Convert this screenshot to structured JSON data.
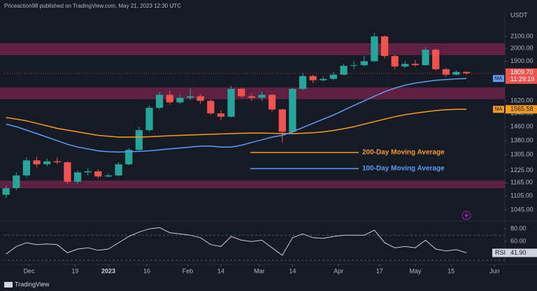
{
  "chart_data": {
    "type": "candlestick",
    "header": "Priceaction98 published on TradingView.com, May 21, 2023 12:30 UTC",
    "quote": "USDT",
    "brand": "TradingView",
    "log_scale": true,
    "up_color": "#26a69a",
    "down_color": "#ef5350",
    "x": [
      -9,
      -5,
      -1,
      3,
      7,
      11,
      15,
      19,
      23,
      27,
      31,
      35,
      39,
      43,
      47,
      51,
      55,
      59,
      63,
      67,
      71,
      75,
      79,
      83,
      87,
      91,
      95,
      99,
      103,
      107,
      111,
      115,
      119,
      123,
      127,
      131,
      135,
      139,
      143,
      147,
      151,
      155,
      159,
      163,
      167,
      171
    ],
    "open": [
      1110,
      1140,
      1200,
      1275,
      1255,
      1270,
      1265,
      1170,
      1215,
      1220,
      1195,
      1200,
      1255,
      1330,
      1440,
      1575,
      1660,
      1610,
      1640,
      1650,
      1620,
      1540,
      1520,
      1700,
      1650,
      1640,
      1660,
      1565,
      1430,
      1700,
      1790,
      1760,
      1770,
      1800,
      1865,
      1870,
      1900,
      2100,
      1940,
      1860,
      1880,
      1870,
      1990,
      1840,
      1800,
      1820
    ],
    "high": [
      1150,
      1215,
      1290,
      1295,
      1285,
      1290,
      1270,
      1225,
      1235,
      1230,
      1210,
      1265,
      1340,
      1460,
      1590,
      1680,
      1690,
      1660,
      1700,
      1665,
      1630,
      1560,
      1720,
      1710,
      1670,
      1680,
      1665,
      1570,
      1710,
      1810,
      1800,
      1790,
      1820,
      1880,
      1900,
      1940,
      2130,
      2110,
      1950,
      1900,
      1910,
      2010,
      2000,
      1850,
      1830,
      1825
    ],
    "low": [
      1095,
      1130,
      1190,
      1240,
      1245,
      1255,
      1160,
      1160,
      1200,
      1185,
      1190,
      1195,
      1250,
      1325,
      1430,
      1565,
      1595,
      1600,
      1625,
      1600,
      1530,
      1500,
      1515,
      1640,
      1620,
      1620,
      1550,
      1370,
      1420,
      1690,
      1740,
      1750,
      1760,
      1795,
      1840,
      1860,
      1895,
      1920,
      1840,
      1850,
      1860,
      1865,
      1830,
      1785,
      1795,
      1800
    ],
    "close": [
      1140,
      1200,
      1275,
      1255,
      1270,
      1265,
      1170,
      1215,
      1220,
      1195,
      1200,
      1255,
      1330,
      1440,
      1575,
      1660,
      1610,
      1640,
      1650,
      1620,
      1540,
      1520,
      1700,
      1650,
      1640,
      1660,
      1565,
      1430,
      1700,
      1790,
      1760,
      1770,
      1800,
      1865,
      1870,
      1900,
      2100,
      1940,
      1860,
      1880,
      1870,
      1990,
      1840,
      1800,
      1820,
      1810
    ],
    "xlim": [
      -10,
      186
    ],
    "xticks": [
      {
        "value": 0,
        "label": "Dec"
      },
      {
        "value": 18,
        "label": "19"
      },
      {
        "value": 31,
        "label": "2023"
      },
      {
        "value": 46,
        "label": "16"
      },
      {
        "value": 62,
        "label": "Feb"
      },
      {
        "value": 75,
        "label": "14"
      },
      {
        "value": 90,
        "label": "Mar"
      },
      {
        "value": 103,
        "label": "14"
      },
      {
        "value": 121,
        "label": "Apr"
      },
      {
        "value": 137,
        "label": "17"
      },
      {
        "value": 151,
        "label": "May"
      },
      {
        "value": 165,
        "label": "15"
      },
      {
        "value": 182,
        "label": "Jun"
      }
    ],
    "ylim": [
      1010,
      2234
    ],
    "yticks": [
      {
        "value": 1045,
        "label": "1045.00"
      },
      {
        "value": 1105,
        "label": "1105.00"
      },
      {
        "value": 1165,
        "label": "1165.00"
      },
      {
        "value": 1225,
        "label": "1225.00"
      },
      {
        "value": 1305,
        "label": "1305.00"
      },
      {
        "value": 1380,
        "label": "1380.00"
      },
      {
        "value": 1460,
        "label": "1460.00"
      },
      {
        "value": 1540,
        "label": "1540.00"
      },
      {
        "value": 1620,
        "label": "1620.00"
      },
      {
        "value": 1900,
        "label": "1900.00"
      },
      {
        "value": 2000,
        "label": "2000.00"
      },
      {
        "value": 2100,
        "label": "2100.00"
      }
    ],
    "zones": {
      "color": "#6b2346",
      "ranges": [
        [
          1947,
          2042
        ],
        [
          1630,
          1710
        ],
        [
          1140,
          1175
        ]
      ]
    },
    "series": [
      {
        "name": "200-Day Moving Average",
        "color": "#f39c1f",
        "tag": "MA",
        "last_label": {
          "value": 1565.58,
          "label": "1565.58"
        },
        "values": [
          1515,
          1505,
          1495,
          1480,
          1465,
          1450,
          1440,
          1430,
          1420,
          1410,
          1405,
          1400,
          1400,
          1400,
          1402,
          1405,
          1408,
          1410,
          1412,
          1414,
          1416,
          1418,
          1420,
          1422,
          1423,
          1423,
          1422,
          1420,
          1420,
          1422,
          1425,
          1430,
          1438,
          1448,
          1460,
          1475,
          1490,
          1505,
          1520,
          1532,
          1542,
          1550,
          1558,
          1563,
          1566,
          1566
        ]
      },
      {
        "name": "100-Day Moving Average",
        "color": "#5b9cf6",
        "tag": "MA",
        "last_label": {
          "value": 1772.47,
          "label": "1772.47"
        },
        "values": [
          1475,
          1460,
          1440,
          1420,
          1400,
          1380,
          1360,
          1345,
          1335,
          1325,
          1320,
          1318,
          1320,
          1322,
          1325,
          1330,
          1335,
          1340,
          1345,
          1350,
          1350,
          1345,
          1345,
          1355,
          1370,
          1385,
          1400,
          1410,
          1430,
          1455,
          1480,
          1505,
          1530,
          1560,
          1590,
          1620,
          1650,
          1680,
          1705,
          1725,
          1740,
          1750,
          1760,
          1765,
          1770,
          1772
        ]
      }
    ],
    "last_price": {
      "value": 1809.7,
      "label": "1809.70",
      "countdown": "11:29:19"
    },
    "rsi": {
      "name": "RSI",
      "color": "#c9cbd3",
      "ylim": [
        28,
        88
      ],
      "yticks": [
        {
          "value": 80,
          "label": "80.00"
        },
        {
          "value": 60,
          "label": "60.00"
        }
      ],
      "levels": [
        70,
        30
      ],
      "last_label": {
        "value": 41.9,
        "label": "41.90"
      },
      "values": [
        40,
        52,
        58,
        55,
        56,
        55,
        42,
        48,
        50,
        46,
        48,
        58,
        68,
        75,
        80,
        82,
        74,
        72,
        70,
        66,
        55,
        52,
        68,
        62,
        60,
        62,
        50,
        38,
        66,
        72,
        66,
        65,
        68,
        70,
        70,
        70,
        78,
        58,
        50,
        52,
        50,
        62,
        48,
        45,
        47,
        42
      ]
    }
  }
}
